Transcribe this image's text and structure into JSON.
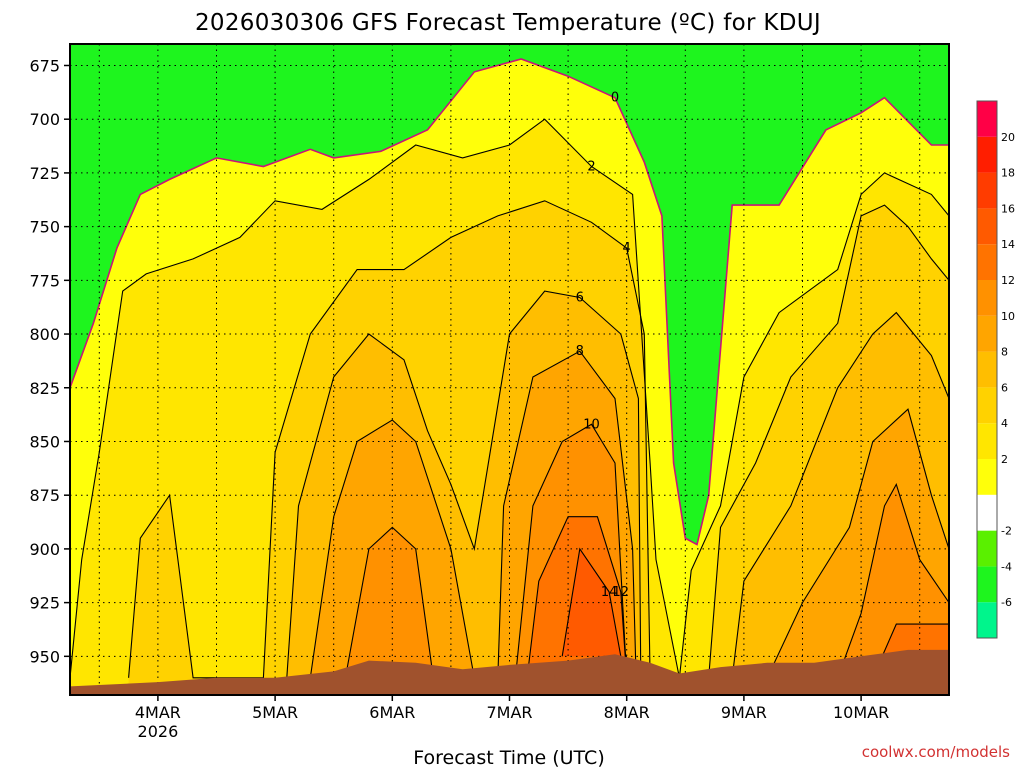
{
  "title": "2026030306 GFS Forecast Temperature (ºC) for KDUJ",
  "credit": "coolwx.com/models",
  "chart_data": {
    "type": "heatmap",
    "title": "2026030306 GFS Forecast Temperature (ºC) for KDUJ",
    "xlabel": "Forecast Time (UTC)",
    "ylabel": "",
    "y_ticks": [
      675,
      700,
      725,
      750,
      775,
      800,
      825,
      850,
      875,
      900,
      925,
      950
    ],
    "y_range": [
      665,
      968
    ],
    "x_ticks": [
      {
        "day": 4.0,
        "label": "4MAR",
        "sublabel": "2026"
      },
      {
        "day": 5.0,
        "label": "5MAR",
        "sublabel": ""
      },
      {
        "day": 6.0,
        "label": "6MAR",
        "sublabel": ""
      },
      {
        "day": 7.0,
        "label": "7MAR",
        "sublabel": ""
      },
      {
        "day": 8.0,
        "label": "8MAR",
        "sublabel": ""
      },
      {
        "day": 9.0,
        "label": "9MAR",
        "sublabel": ""
      },
      {
        "day": 10.0,
        "label": "10MAR",
        "sublabel": ""
      }
    ],
    "x_range": [
      3.25,
      10.75
    ],
    "colorbar": {
      "levels": [
        -8,
        -6,
        -4,
        -2,
        0,
        2,
        4,
        6,
        8,
        10,
        12,
        14,
        16,
        18,
        20,
        22
      ],
      "tick_labels": [
        "-6",
        "-4",
        "-2",
        "2",
        "4",
        "6",
        "8",
        "10",
        "12",
        "14",
        "16",
        "18",
        "20"
      ],
      "colors": [
        "#00f58c",
        "#1ef51e",
        "#5af000",
        "#ffffff",
        "#ffff0a",
        "#ffe600",
        "#ffd200",
        "#ffbe00",
        "#ffa500",
        "#ff9100",
        "#ff7300",
        "#ff5a00",
        "#ff3c00",
        "#ff1e00",
        "#ff0046"
      ]
    },
    "series": [
      {
        "name": "0",
        "values": [
          [
            3.25,
            825
          ],
          [
            3.45,
            795
          ],
          [
            3.65,
            760
          ],
          [
            3.85,
            735
          ],
          [
            4.1,
            728
          ],
          [
            4.5,
            718
          ],
          [
            4.9,
            722
          ],
          [
            5.3,
            714
          ],
          [
            5.5,
            718
          ],
          [
            5.9,
            715
          ],
          [
            6.3,
            705
          ],
          [
            6.7,
            678
          ],
          [
            7.1,
            672
          ],
          [
            7.5,
            680
          ],
          [
            7.9,
            690
          ],
          [
            8.15,
            720
          ],
          [
            8.3,
            745
          ],
          [
            8.4,
            860
          ],
          [
            8.5,
            895
          ],
          [
            8.6,
            898
          ],
          [
            8.7,
            875
          ],
          [
            8.9,
            740
          ],
          [
            9.3,
            740
          ],
          [
            9.7,
            705
          ],
          [
            10.0,
            697
          ],
          [
            10.2,
            690
          ],
          [
            10.6,
            712
          ],
          [
            10.75,
            712
          ]
        ]
      },
      {
        "name": "2",
        "values": [
          [
            3.25,
            960
          ],
          [
            3.35,
            905
          ],
          [
            3.5,
            855
          ],
          [
            3.7,
            780
          ],
          [
            3.9,
            772
          ],
          [
            4.3,
            765
          ],
          [
            4.7,
            755
          ],
          [
            5.0,
            738
          ],
          [
            5.4,
            742
          ],
          [
            5.8,
            728
          ],
          [
            6.2,
            712
          ],
          [
            6.6,
            718
          ],
          [
            7.0,
            712
          ],
          [
            7.3,
            700
          ],
          [
            7.7,
            722
          ],
          [
            8.05,
            735
          ],
          [
            8.2,
            860
          ],
          [
            8.25,
            905
          ],
          [
            8.45,
            960
          ],
          [
            8.55,
            910
          ],
          [
            8.8,
            880
          ],
          [
            9.0,
            820
          ],
          [
            9.3,
            790
          ],
          [
            9.8,
            770
          ],
          [
            10.0,
            735
          ],
          [
            10.2,
            725
          ],
          [
            10.6,
            735
          ],
          [
            10.75,
            745
          ]
        ]
      },
      {
        "name": "4",
        "values": [
          [
            3.75,
            960
          ],
          [
            3.85,
            895
          ],
          [
            4.1,
            875
          ],
          [
            4.3,
            960
          ],
          [
            4.9,
            960
          ],
          [
            5.0,
            855
          ],
          [
            5.3,
            800
          ],
          [
            5.7,
            770
          ],
          [
            6.1,
            770
          ],
          [
            6.5,
            755
          ],
          [
            6.9,
            745
          ],
          [
            7.3,
            738
          ],
          [
            7.7,
            748
          ],
          [
            8.0,
            760
          ],
          [
            8.15,
            800
          ],
          [
            8.2,
            960
          ],
          [
            8.7,
            960
          ],
          [
            8.8,
            890
          ],
          [
            9.1,
            860
          ],
          [
            9.4,
            820
          ],
          [
            9.8,
            795
          ],
          [
            10.0,
            745
          ],
          [
            10.2,
            740
          ],
          [
            10.4,
            750
          ],
          [
            10.6,
            765
          ],
          [
            10.75,
            775
          ]
        ]
      },
      {
        "name": "6",
        "values": [
          [
            5.1,
            960
          ],
          [
            5.2,
            880
          ],
          [
            5.5,
            820
          ],
          [
            5.8,
            800
          ],
          [
            6.1,
            812
          ],
          [
            6.3,
            845
          ],
          [
            6.5,
            870
          ],
          [
            6.7,
            900
          ],
          [
            6.85,
            850
          ],
          [
            7.0,
            800
          ],
          [
            7.3,
            780
          ],
          [
            7.6,
            783
          ],
          [
            7.95,
            800
          ],
          [
            8.1,
            830
          ],
          [
            8.12,
            960
          ],
          [
            8.9,
            960
          ],
          [
            9.0,
            915
          ],
          [
            9.4,
            880
          ],
          [
            9.8,
            825
          ],
          [
            10.1,
            800
          ],
          [
            10.3,
            790
          ],
          [
            10.6,
            810
          ],
          [
            10.75,
            830
          ]
        ]
      },
      {
        "name": "8",
        "values": [
          [
            5.3,
            960
          ],
          [
            5.5,
            885
          ],
          [
            5.7,
            850
          ],
          [
            6.0,
            840
          ],
          [
            6.2,
            850
          ],
          [
            6.5,
            900
          ],
          [
            6.7,
            960
          ],
          [
            6.9,
            960
          ],
          [
            6.95,
            880
          ],
          [
            7.2,
            820
          ],
          [
            7.6,
            808
          ],
          [
            7.9,
            830
          ],
          [
            8.05,
            900
          ],
          [
            8.08,
            960
          ],
          [
            9.2,
            960
          ],
          [
            9.5,
            925
          ],
          [
            9.9,
            890
          ],
          [
            10.1,
            850
          ],
          [
            10.4,
            835
          ],
          [
            10.6,
            875
          ],
          [
            10.75,
            900
          ]
        ]
      },
      {
        "name": "10",
        "values": [
          [
            5.6,
            960
          ],
          [
            5.8,
            900
          ],
          [
            6.0,
            890
          ],
          [
            6.2,
            900
          ],
          [
            6.35,
            960
          ],
          [
            7.05,
            960
          ],
          [
            7.2,
            880
          ],
          [
            7.45,
            850
          ],
          [
            7.7,
            842
          ],
          [
            7.9,
            860
          ],
          [
            8.0,
            960
          ],
          [
            9.8,
            960
          ],
          [
            10.0,
            930
          ],
          [
            10.2,
            880
          ],
          [
            10.3,
            870
          ],
          [
            10.5,
            905
          ],
          [
            10.75,
            925
          ]
        ]
      },
      {
        "name": "12",
        "values": [
          [
            7.15,
            960
          ],
          [
            7.25,
            915
          ],
          [
            7.5,
            885
          ],
          [
            7.75,
            885
          ],
          [
            7.95,
            920
          ],
          [
            8.0,
            960
          ],
          [
            10.1,
            960
          ],
          [
            10.3,
            935
          ],
          [
            10.75,
            935
          ]
        ]
      },
      {
        "name": "14",
        "values": [
          [
            7.45,
            950
          ],
          [
            7.6,
            900
          ],
          [
            7.85,
            920
          ],
          [
            7.95,
            950
          ]
        ]
      }
    ],
    "terrain_color": "#a0522d"
  }
}
